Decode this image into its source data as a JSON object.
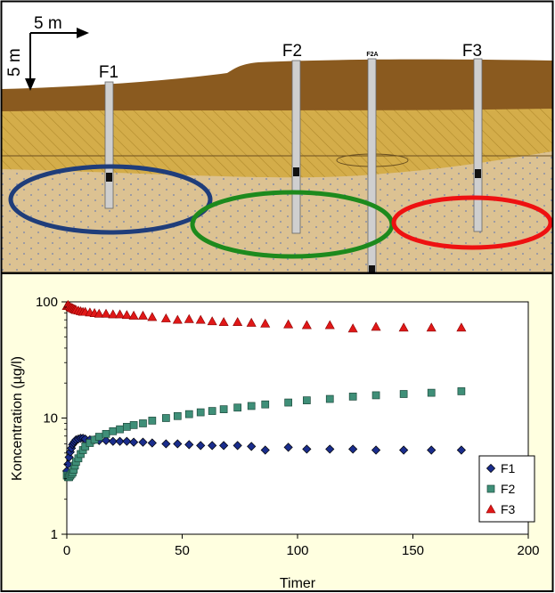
{
  "cross_section": {
    "scale_horizontal": "5 m",
    "scale_vertical": "5 m",
    "wells": [
      {
        "label": "F1"
      },
      {
        "label": "F2"
      },
      {
        "label": "F2A"
      },
      {
        "label": "F3"
      }
    ],
    "colors": {
      "topsoil": "#8a5a1f",
      "till": "#d4ad4a",
      "sand": "#dcc292",
      "sky": "#ffffff",
      "plume_f1": "#1f3d7a",
      "plume_f2": "#1d8a1d",
      "plume_f3": "#ee1111"
    }
  },
  "chart_data": {
    "type": "scatter",
    "xlabel": "Timer",
    "ylabel": "Koncentration (µg/l)",
    "xlim": [
      0,
      200
    ],
    "ylim": [
      1,
      100
    ],
    "yscale": "log",
    "xticks": [
      "0",
      "50",
      "100",
      "150",
      "200"
    ],
    "yticks": [
      "1",
      "10",
      "100"
    ],
    "legend_position": "bottom-right",
    "background": "#ffffe0",
    "series": [
      {
        "name": "F1",
        "color": "#1a2d8c",
        "marker": "diamond",
        "points": [
          [
            0,
            3.5
          ],
          [
            0.5,
            4.0
          ],
          [
            1,
            4.6
          ],
          [
            1.5,
            5.1
          ],
          [
            2,
            5.5
          ],
          [
            2.5,
            5.9
          ],
          [
            3,
            6.1
          ],
          [
            3.5,
            6.3
          ],
          [
            4,
            6.5
          ],
          [
            5,
            6.6
          ],
          [
            6,
            6.7
          ],
          [
            7,
            6.7
          ],
          [
            8,
            6.6
          ],
          [
            10,
            6.5
          ],
          [
            12,
            6.5
          ],
          [
            14,
            6.4
          ],
          [
            17,
            6.4
          ],
          [
            20,
            6.3
          ],
          [
            23,
            6.3
          ],
          [
            26,
            6.3
          ],
          [
            29,
            6.2
          ],
          [
            33,
            6.2
          ],
          [
            37,
            6.1
          ],
          [
            43,
            6.0
          ],
          [
            48,
            6.0
          ],
          [
            53,
            5.9
          ],
          [
            58,
            5.8
          ],
          [
            63,
            5.8
          ],
          [
            68,
            5.8
          ],
          [
            74,
            5.8
          ],
          [
            80,
            5.7
          ],
          [
            86,
            5.3
          ],
          [
            96,
            5.6
          ],
          [
            104,
            5.4
          ],
          [
            114,
            5.4
          ],
          [
            124,
            5.4
          ],
          [
            134,
            5.3
          ],
          [
            146,
            5.3
          ],
          [
            158,
            5.3
          ],
          [
            171,
            5.3
          ]
        ]
      },
      {
        "name": "F2",
        "color": "#3f8f78",
        "marker": "square",
        "points": [
          [
            0,
            3.2
          ],
          [
            0.5,
            3.1
          ],
          [
            1,
            3.1
          ],
          [
            1.5,
            3.2
          ],
          [
            2,
            3.3
          ],
          [
            2.5,
            3.4
          ],
          [
            3,
            3.6
          ],
          [
            3.5,
            3.9
          ],
          [
            4,
            4.2
          ],
          [
            5,
            4.5
          ],
          [
            6,
            4.9
          ],
          [
            7,
            5.3
          ],
          [
            8,
            5.7
          ],
          [
            10,
            6.1
          ],
          [
            12,
            6.5
          ],
          [
            14,
            6.9
          ],
          [
            17,
            7.3
          ],
          [
            20,
            7.7
          ],
          [
            23,
            8.0
          ],
          [
            26,
            8.4
          ],
          [
            29,
            8.7
          ],
          [
            33,
            9.0
          ],
          [
            37,
            9.5
          ],
          [
            43,
            10.0
          ],
          [
            48,
            10.4
          ],
          [
            53,
            10.8
          ],
          [
            58,
            11.2
          ],
          [
            63,
            11.5
          ],
          [
            68,
            11.9
          ],
          [
            74,
            12.3
          ],
          [
            80,
            12.7
          ],
          [
            86,
            13.1
          ],
          [
            96,
            13.6
          ],
          [
            104,
            14.2
          ],
          [
            114,
            14.6
          ],
          [
            124,
            15.3
          ],
          [
            134,
            15.7
          ],
          [
            146,
            16.1
          ],
          [
            158,
            16.5
          ],
          [
            171,
            17.0
          ]
        ]
      },
      {
        "name": "F3",
        "color": "#e01818",
        "marker": "triangle",
        "points": [
          [
            0,
            92
          ],
          [
            0.5,
            94
          ],
          [
            1,
            92
          ],
          [
            1.5,
            90
          ],
          [
            2,
            89
          ],
          [
            2.5,
            88
          ],
          [
            3,
            87
          ],
          [
            3.5,
            86
          ],
          [
            4,
            85
          ],
          [
            5,
            84
          ],
          [
            6,
            83
          ],
          [
            7,
            82
          ],
          [
            8,
            82
          ],
          [
            10,
            81
          ],
          [
            12,
            80
          ],
          [
            14,
            79
          ],
          [
            17,
            79
          ],
          [
            20,
            78
          ],
          [
            23,
            78
          ],
          [
            26,
            77
          ],
          [
            29,
            76
          ],
          [
            33,
            76
          ],
          [
            37,
            74
          ],
          [
            43,
            72
          ],
          [
            48,
            70
          ],
          [
            53,
            71
          ],
          [
            58,
            70
          ],
          [
            63,
            68
          ],
          [
            68,
            67
          ],
          [
            74,
            67
          ],
          [
            80,
            66
          ],
          [
            86,
            65
          ],
          [
            96,
            64
          ],
          [
            104,
            63
          ],
          [
            114,
            63
          ],
          [
            124,
            59
          ],
          [
            134,
            61
          ],
          [
            146,
            60
          ],
          [
            158,
            60
          ],
          [
            171,
            60
          ]
        ]
      }
    ]
  }
}
